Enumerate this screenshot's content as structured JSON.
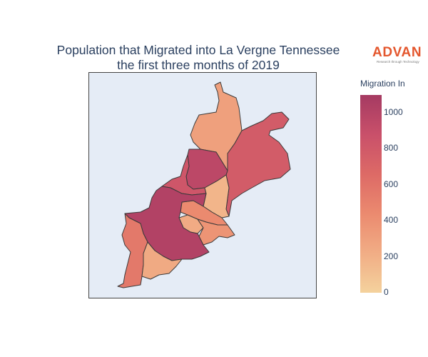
{
  "title": {
    "line1": "Population that Migrated into La Vergne Tennessee",
    "line2": "the first three months of 2019"
  },
  "logo": {
    "name": "ADVAN",
    "tagline": "Research through Technology",
    "color": "#e4572e"
  },
  "colorbar": {
    "title": "Migration In",
    "ticks": [
      "0",
      "200",
      "400",
      "600",
      "800",
      "1000"
    ],
    "min": 0,
    "max": 1100,
    "colorscale": [
      "#f4d29d",
      "#f1ad85",
      "#eb8a6f",
      "#dd6a66",
      "#c9506a",
      "#a53a62"
    ]
  },
  "map": {
    "background": "#e5ecf6",
    "border_color": "#444444",
    "regions": [
      {
        "id": "north-tall",
        "value": 300
      },
      {
        "id": "northeast-large",
        "value": 780
      },
      {
        "id": "center-north",
        "value": 960
      },
      {
        "id": "center-west-strip",
        "value": 830
      },
      {
        "id": "center-pale",
        "value": 170
      },
      {
        "id": "center-mid-orange",
        "value": 440
      },
      {
        "id": "center-small-pale",
        "value": 230
      },
      {
        "id": "south-east-orange",
        "value": 380
      },
      {
        "id": "south-large-dark",
        "value": 1020
      },
      {
        "id": "southwest-strip",
        "value": 560
      },
      {
        "id": "south-pale",
        "value": 240
      }
    ]
  }
}
